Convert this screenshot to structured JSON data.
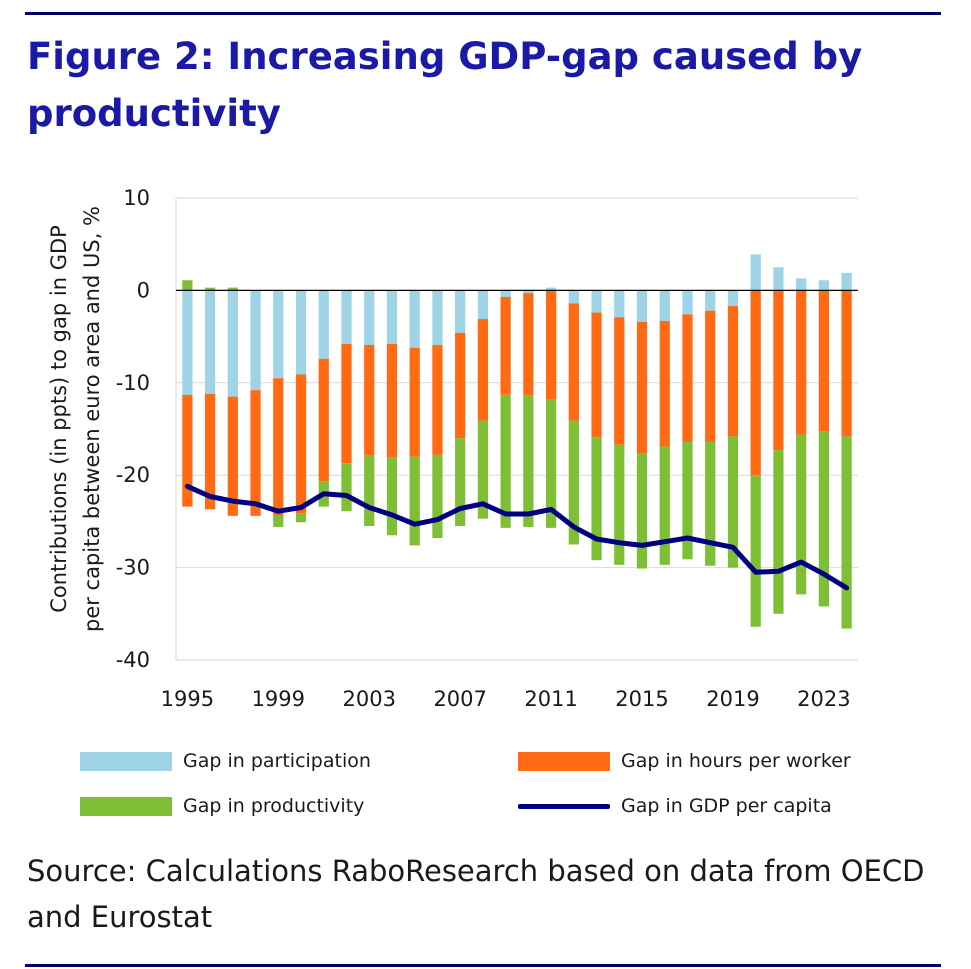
{
  "title": "Figure 2: Increasing GDP-gap caused by productivity",
  "source": "Source: Calculations RaboResearch based on data from OECD and Eurostat",
  "colors": {
    "participation": "#9fd3e6",
    "hours": "#ff6a12",
    "productivity": "#7fbf35",
    "gdp": "#000080",
    "rule": "#000066",
    "title": "#1a1aa6"
  },
  "legend": {
    "participation": "Gap in participation",
    "hours": "Gap in hours per worker",
    "productivity": "Gap in productivity",
    "gdp": "Gap in GDP per capita"
  },
  "chart_data": {
    "type": "bar",
    "stacked": true,
    "ylabel": "Contributions (in ppts) to gap in GDP per capita between euro area and US, %",
    "xlabel": "",
    "ylim": [
      -40,
      10
    ],
    "yticks": [
      10,
      0,
      -10,
      -20,
      -30,
      -40
    ],
    "xtick_labels": [
      "1995",
      "1999",
      "2003",
      "2007",
      "2011",
      "2015",
      "2019",
      "2023"
    ],
    "grid": "horizontal",
    "legend_position": "bottom",
    "categories": [
      1995,
      1996,
      1997,
      1998,
      1999,
      2000,
      2001,
      2002,
      2003,
      2004,
      2005,
      2006,
      2007,
      2008,
      2009,
      2010,
      2011,
      2012,
      2013,
      2014,
      2015,
      2016,
      2017,
      2018,
      2019,
      2020,
      2021,
      2022,
      2023,
      2024
    ],
    "series": [
      {
        "name": "Gap in participation",
        "type": "bar",
        "values": [
          -11.3,
          -11.2,
          -11.5,
          -10.8,
          -9.5,
          -9.1,
          -7.4,
          -5.8,
          -5.9,
          -5.8,
          -6.2,
          -5.9,
          -4.6,
          -3.1,
          -0.7,
          -0.3,
          0.3,
          -1.4,
          -2.4,
          -2.9,
          -3.4,
          -3.3,
          -2.6,
          -2.2,
          -1.7,
          3.9,
          2.5,
          1.3,
          1.1,
          1.9
        ]
      },
      {
        "name": "Gap in hours per worker",
        "type": "bar",
        "values": [
          -12.1,
          -12.5,
          -12.9,
          -13.6,
          -14.9,
          -15.0,
          -13.3,
          -12.9,
          -12.0,
          -12.3,
          -11.8,
          -11.9,
          -11.4,
          -11.0,
          -10.6,
          -11.1,
          -11.8,
          -12.7,
          -13.5,
          -13.8,
          -14.2,
          -13.6,
          -13.8,
          -14.2,
          -14.1,
          -20.0,
          -17.3,
          -15.6,
          -15.3,
          -15.8
        ]
      },
      {
        "name": "Gap in productivity",
        "type": "bar",
        "values": [
          1.1,
          0.3,
          0.3,
          0.0,
          -1.2,
          -1.0,
          -2.7,
          -5.2,
          -7.6,
          -8.4,
          -9.6,
          -9.0,
          -9.5,
          -10.6,
          -14.4,
          -14.2,
          -13.9,
          -13.4,
          -13.3,
          -13.0,
          -12.5,
          -12.8,
          -12.7,
          -13.4,
          -14.2,
          -16.4,
          -17.7,
          -17.3,
          -18.9,
          -20.8
        ]
      },
      {
        "name": "Gap in GDP per capita",
        "type": "line",
        "values": [
          -21.2,
          -22.3,
          -22.8,
          -23.1,
          -23.9,
          -23.5,
          -22.0,
          -22.2,
          -23.5,
          -24.3,
          -25.3,
          -24.8,
          -23.6,
          -23.1,
          -24.2,
          -24.2,
          -23.7,
          -25.6,
          -26.9,
          -27.3,
          -27.6,
          -27.2,
          -26.8,
          -27.3,
          -27.8,
          -30.5,
          -30.4,
          -29.4,
          -30.7,
          -32.2
        ]
      }
    ]
  }
}
